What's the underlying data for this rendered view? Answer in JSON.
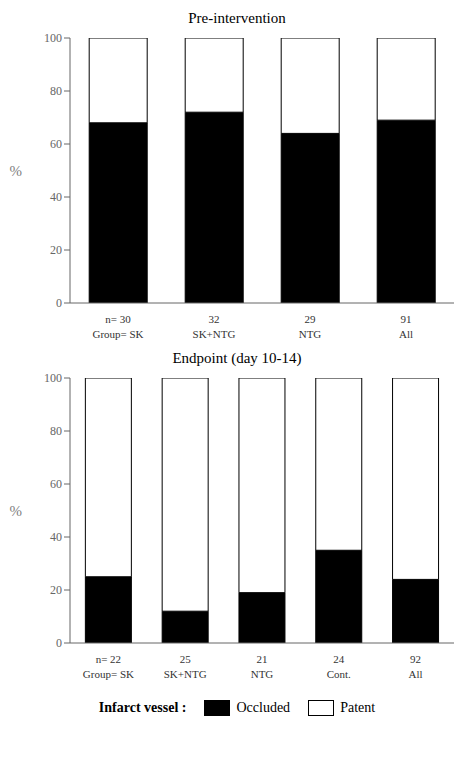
{
  "chart_data": [
    {
      "type": "bar",
      "title": "Pre-intervention",
      "categories": [
        "Group= SK",
        "SK+NTG",
        "NTG",
        "All"
      ],
      "n_labels": [
        "n= 30",
        "32",
        "29",
        "91"
      ],
      "series": [
        {
          "name": "Occluded",
          "color": "#000000",
          "values": [
            68,
            72,
            64,
            69
          ]
        },
        {
          "name": "Patent",
          "color": "#ffffff",
          "values": [
            32,
            28,
            36,
            31
          ]
        }
      ],
      "stacked": true,
      "y_label": "%",
      "ylim": [
        0,
        100
      ],
      "yticks": [
        0,
        20,
        40,
        60,
        80,
        100
      ],
      "grid": false
    },
    {
      "type": "bar",
      "title": "Endpoint (day 10-14)",
      "categories": [
        "Group= SK",
        "SK+NTG",
        "NTG",
        "Cont.",
        "All"
      ],
      "n_labels": [
        "n= 22",
        "25",
        "21",
        "24",
        "92"
      ],
      "series": [
        {
          "name": "Occluded",
          "color": "#000000",
          "values": [
            25,
            12,
            19,
            35,
            24
          ]
        },
        {
          "name": "Patent",
          "color": "#ffffff",
          "values": [
            75,
            88,
            81,
            65,
            76
          ]
        }
      ],
      "stacked": true,
      "y_label": "%",
      "ylim": [
        0,
        100
      ],
      "yticks": [
        0,
        20,
        40,
        60,
        80,
        100
      ],
      "grid": false,
      "legend": "bottom",
      "legend_title": "Infarct vessel :"
    }
  ]
}
